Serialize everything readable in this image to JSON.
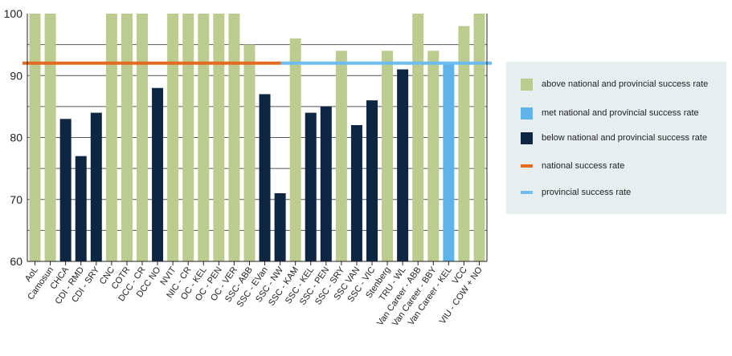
{
  "chart_data": {
    "type": "bar",
    "categories": [
      "AoL",
      "Camosun",
      "CHCA",
      "CDI - RMD",
      "CDI - SRY",
      "CNC",
      "COTR",
      "DCC - CR",
      "DCC NO",
      "NVIT",
      "NIC - CR",
      "OC - KEL",
      "OC - PEN",
      "OC - VER",
      "SSC- ABB",
      "SSC - EVan",
      "SSC - NW",
      "SSC - KAM",
      "SSC - KEL",
      "SSC - PEN",
      "SSC - SRY",
      "SSC VAN",
      "SSC - VIC",
      "Stenberg",
      "TRU - WL",
      "Van Career - ABB",
      "Van Career - BBY",
      "Van Career - KEL",
      "VCC",
      "VIU - COW + NO"
    ],
    "values": [
      100,
      100,
      83,
      77,
      84,
      100,
      100,
      100,
      88,
      100,
      100,
      100,
      100,
      100,
      95,
      87,
      71,
      96,
      84,
      85,
      94,
      82,
      86,
      94,
      91,
      100,
      94,
      92,
      98,
      100
    ],
    "status": [
      "above",
      "above",
      "below",
      "below",
      "below",
      "above",
      "above",
      "above",
      "below",
      "above",
      "above",
      "above",
      "above",
      "above",
      "above",
      "below",
      "below",
      "above",
      "below",
      "below",
      "above",
      "below",
      "below",
      "above",
      "below",
      "above",
      "above",
      "met",
      "above",
      "above"
    ],
    "ylim": [
      60,
      100
    ],
    "yticks": [
      "60",
      "70",
      "80",
      "90",
      "100"
    ],
    "national_rate": 92,
    "provincial_rate": 92,
    "national_rate_span": [
      0,
      16
    ],
    "grid": true,
    "xlabel": "",
    "ylabel": "",
    "title": "",
    "colors": {
      "above": "#bccb8e",
      "met": "#5eb4ea",
      "below": "#0d2642",
      "national": "#e36b1f",
      "provincial": "#6cbcf0",
      "plot_bg": "#ffffff",
      "grid": "#555555"
    },
    "legend_position": "right"
  },
  "legend": {
    "above": "above national and provincial success rate",
    "met": "met national and provincial success rate",
    "below": "below national and provincial success rate",
    "national": "national success rate",
    "provincial": "provincial success rate"
  }
}
